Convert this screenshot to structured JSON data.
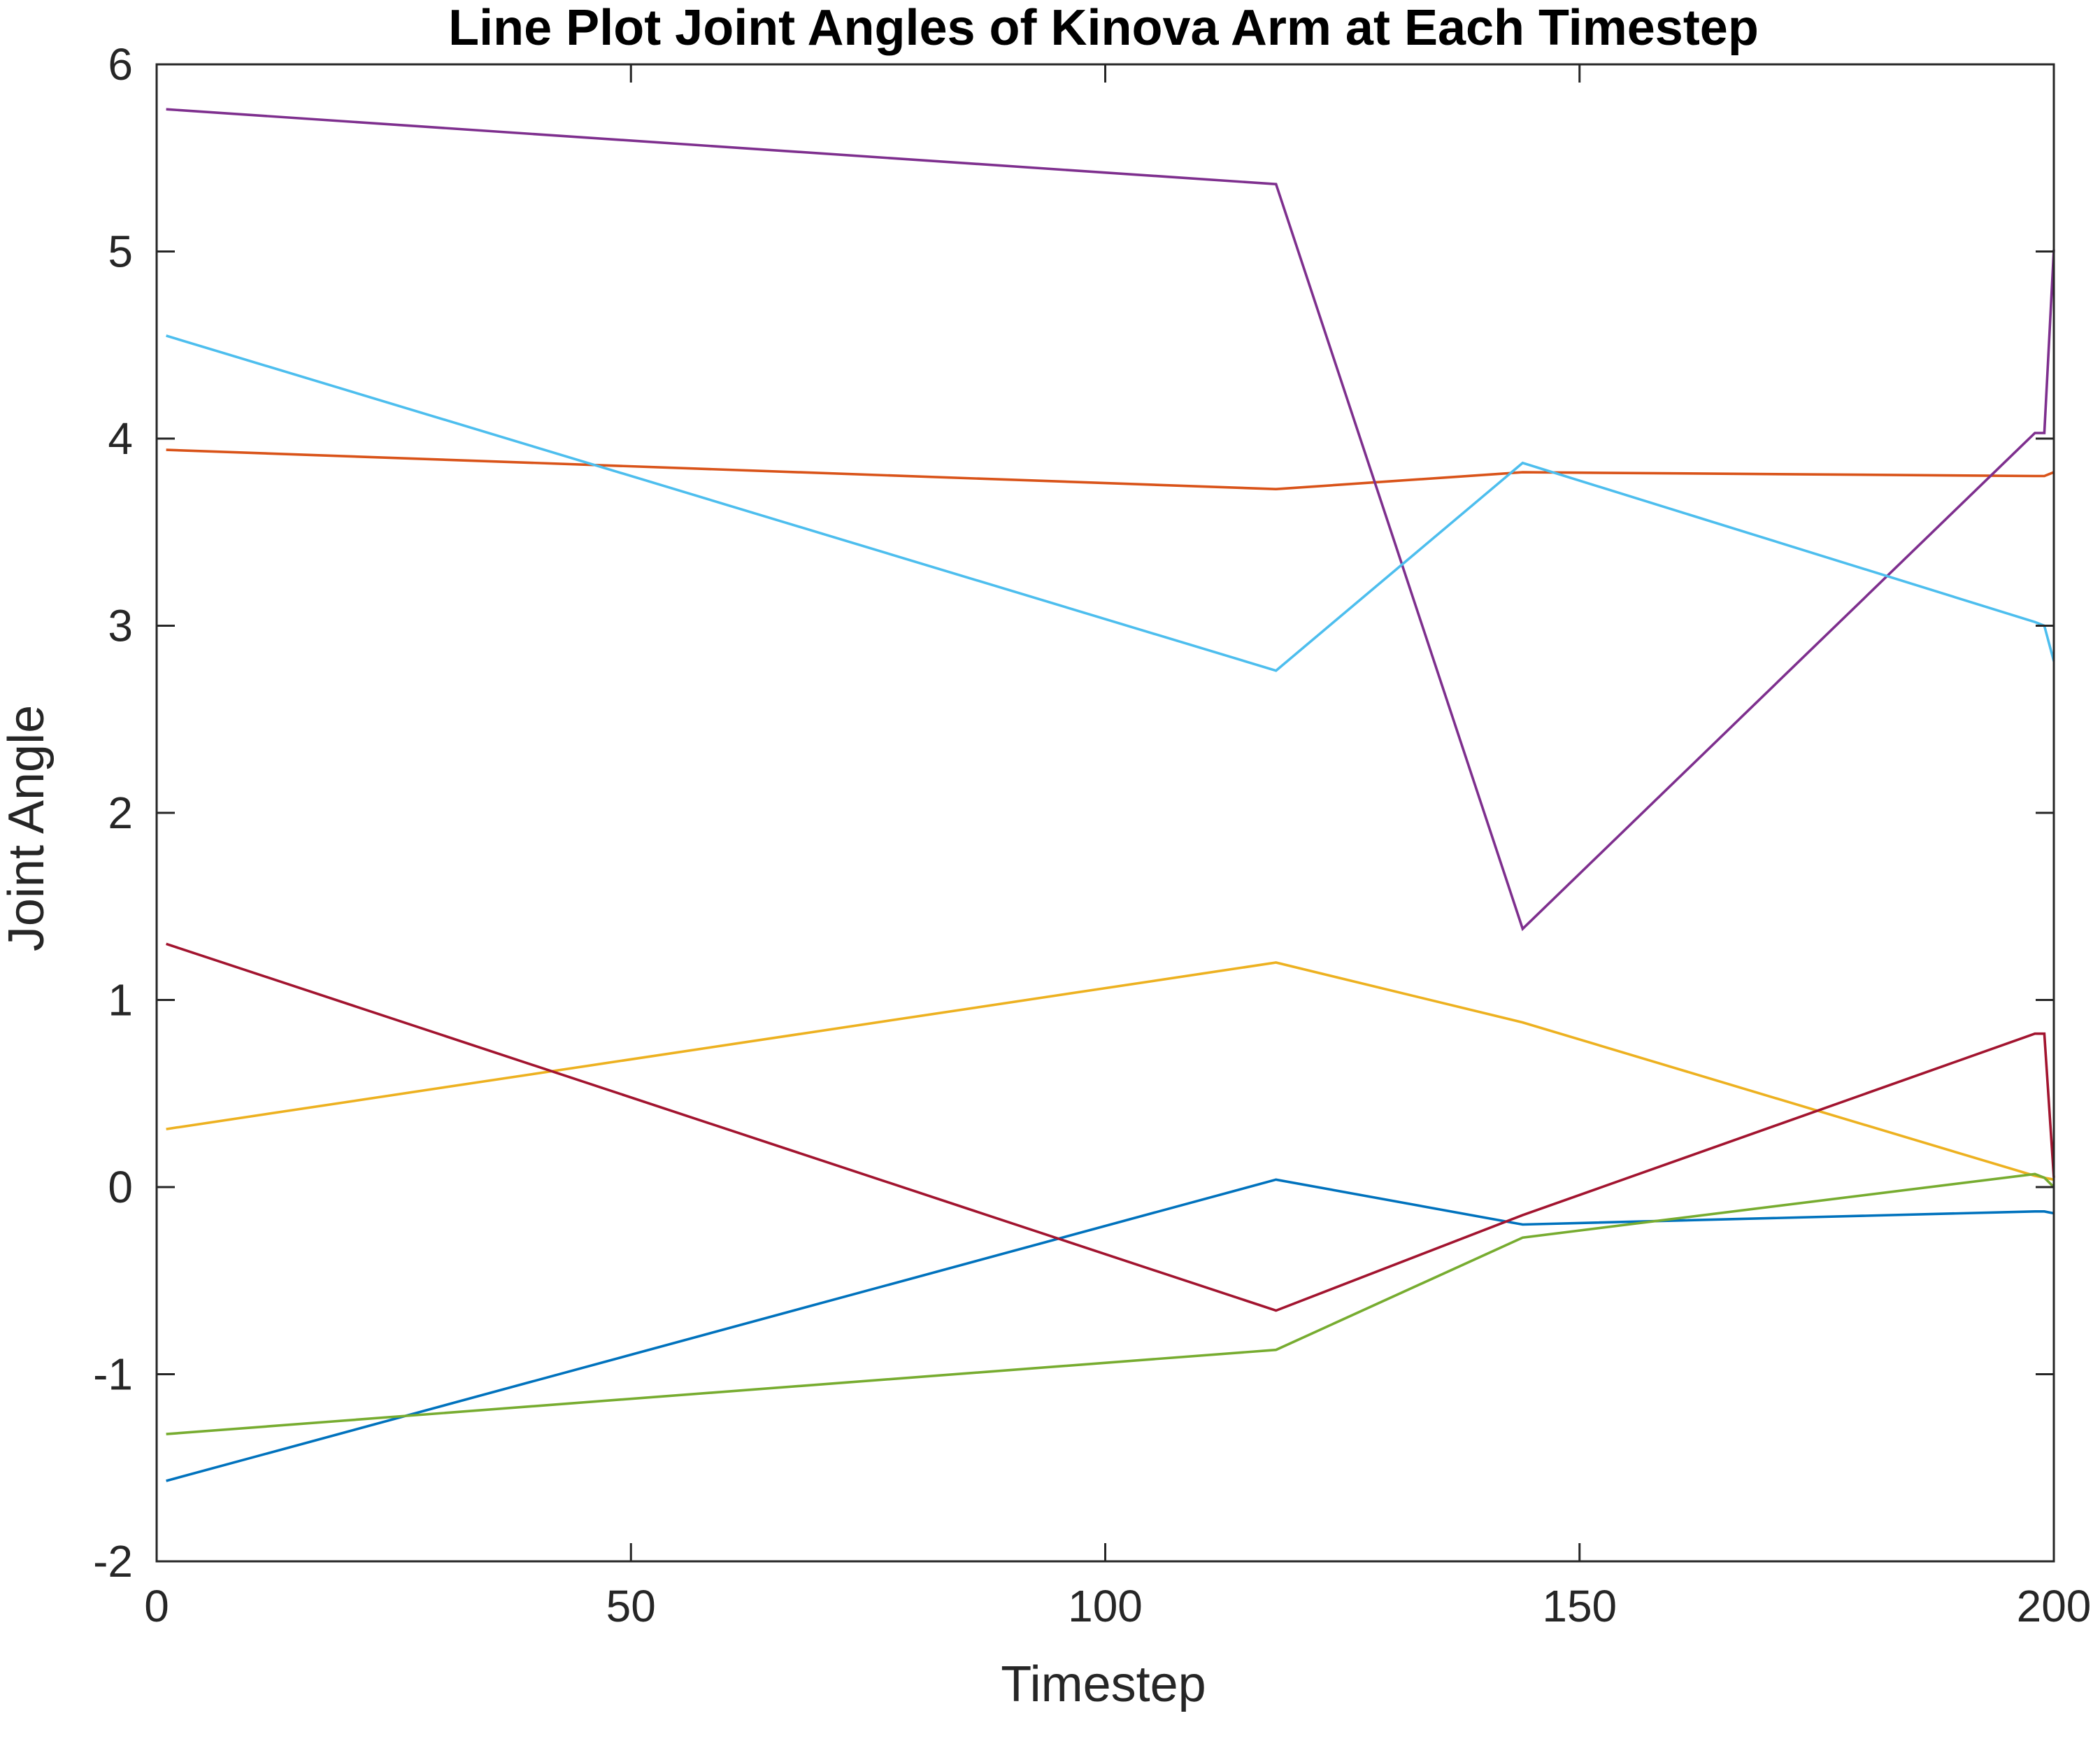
{
  "chart_data": {
    "type": "line",
    "title": "Line Plot Joint Angles of Kinova Arm at Each Timestep",
    "xlabel": "Timestep",
    "ylabel": "Joint Angle",
    "xlim": [
      0,
      200
    ],
    "ylim": [
      -2,
      6
    ],
    "xticks": [
      0,
      50,
      100,
      150,
      200
    ],
    "yticks": [
      -2,
      -1,
      0,
      1,
      2,
      3,
      4,
      5,
      6
    ],
    "xtick_labels": [
      "0",
      "50",
      "100",
      "150",
      "200"
    ],
    "ytick_labels": [
      "-2",
      "-1",
      "0",
      "1",
      "2",
      "3",
      "4",
      "5",
      "6"
    ],
    "grid": false,
    "legend": null,
    "series": [
      {
        "color": "#0072BD",
        "x": [
          1,
          118,
          144,
          198,
          199,
          200
        ],
        "y": [
          -1.57,
          0.04,
          -0.2,
          -0.13,
          -0.13,
          -0.14
        ]
      },
      {
        "color": "#D95319",
        "x": [
          1,
          118,
          144,
          198,
          199,
          200
        ],
        "y": [
          3.94,
          3.73,
          3.82,
          3.8,
          3.8,
          3.82
        ]
      },
      {
        "color": "#EDB120",
        "x": [
          1,
          118,
          144,
          198,
          199,
          200
        ],
        "y": [
          0.31,
          1.2,
          0.88,
          0.06,
          0.05,
          0.04
        ]
      },
      {
        "color": "#7E2F8E",
        "x": [
          1,
          118,
          144,
          198,
          199,
          200
        ],
        "y": [
          5.76,
          5.36,
          1.38,
          4.03,
          4.03,
          5.01
        ]
      },
      {
        "color": "#77AC30",
        "x": [
          1,
          118,
          144,
          198,
          199,
          200
        ],
        "y": [
          -1.32,
          -0.87,
          -0.27,
          0.07,
          0.05,
          0.0
        ]
      },
      {
        "color": "#4DBEEE",
        "x": [
          1,
          118,
          144,
          198,
          199,
          200
        ],
        "y": [
          4.55,
          2.76,
          3.87,
          3.02,
          3.0,
          2.81
        ]
      },
      {
        "color": "#A2142F",
        "x": [
          1,
          118,
          144,
          198,
          199,
          200
        ],
        "y": [
          1.3,
          -0.66,
          -0.15,
          0.82,
          0.82,
          0.05
        ]
      }
    ]
  }
}
